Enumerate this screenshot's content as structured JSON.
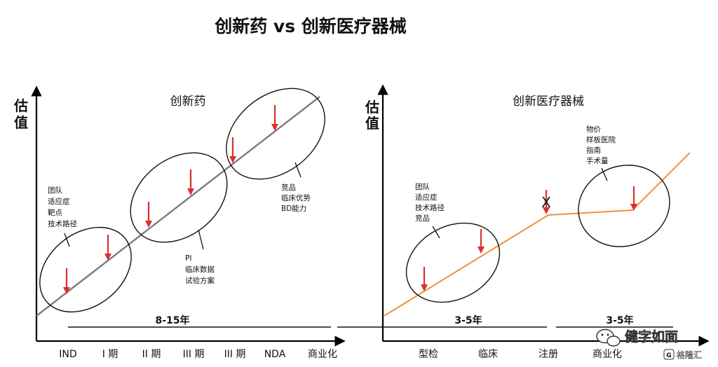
{
  "title": "创新药 vs 创新医疗器械",
  "colors": {
    "drug_line": "#7f7f7f",
    "device_line": "#f0923a",
    "arrow": "#d9302b",
    "axis": "#000000"
  },
  "drug_panel": {
    "subtitle": "创新药",
    "y_label": [
      "估",
      "值"
    ],
    "x_ticks": [
      "IND",
      "I 期",
      "II 期",
      "III 期",
      "III 期",
      "NDA",
      "商业化"
    ],
    "duration": "8-15年",
    "notes": {
      "left": [
        "团队",
        "适应症",
        "靶点",
        "技术路径"
      ],
      "middle": [
        "PI",
        "临床数据",
        "试验方案"
      ],
      "right": [
        "竞品",
        "临床优势",
        "BD能力"
      ]
    }
  },
  "device_panel": {
    "subtitle": "创新医疗器械",
    "y_label": [
      "估",
      "值"
    ],
    "x_ticks": [
      "型检",
      "临床",
      "注册",
      "商业化"
    ],
    "durations": [
      "3-5年",
      "3-5年"
    ],
    "x_mark": "X",
    "notes": {
      "left": [
        "团队",
        "适应症",
        "技术路径",
        "竞品"
      ],
      "right": [
        "物价",
        "样板医院",
        "指南",
        "手术量"
      ]
    }
  },
  "watermark": {
    "text": "健字如面",
    "secondary": "格隆汇",
    "icon": "wechat-icon"
  }
}
